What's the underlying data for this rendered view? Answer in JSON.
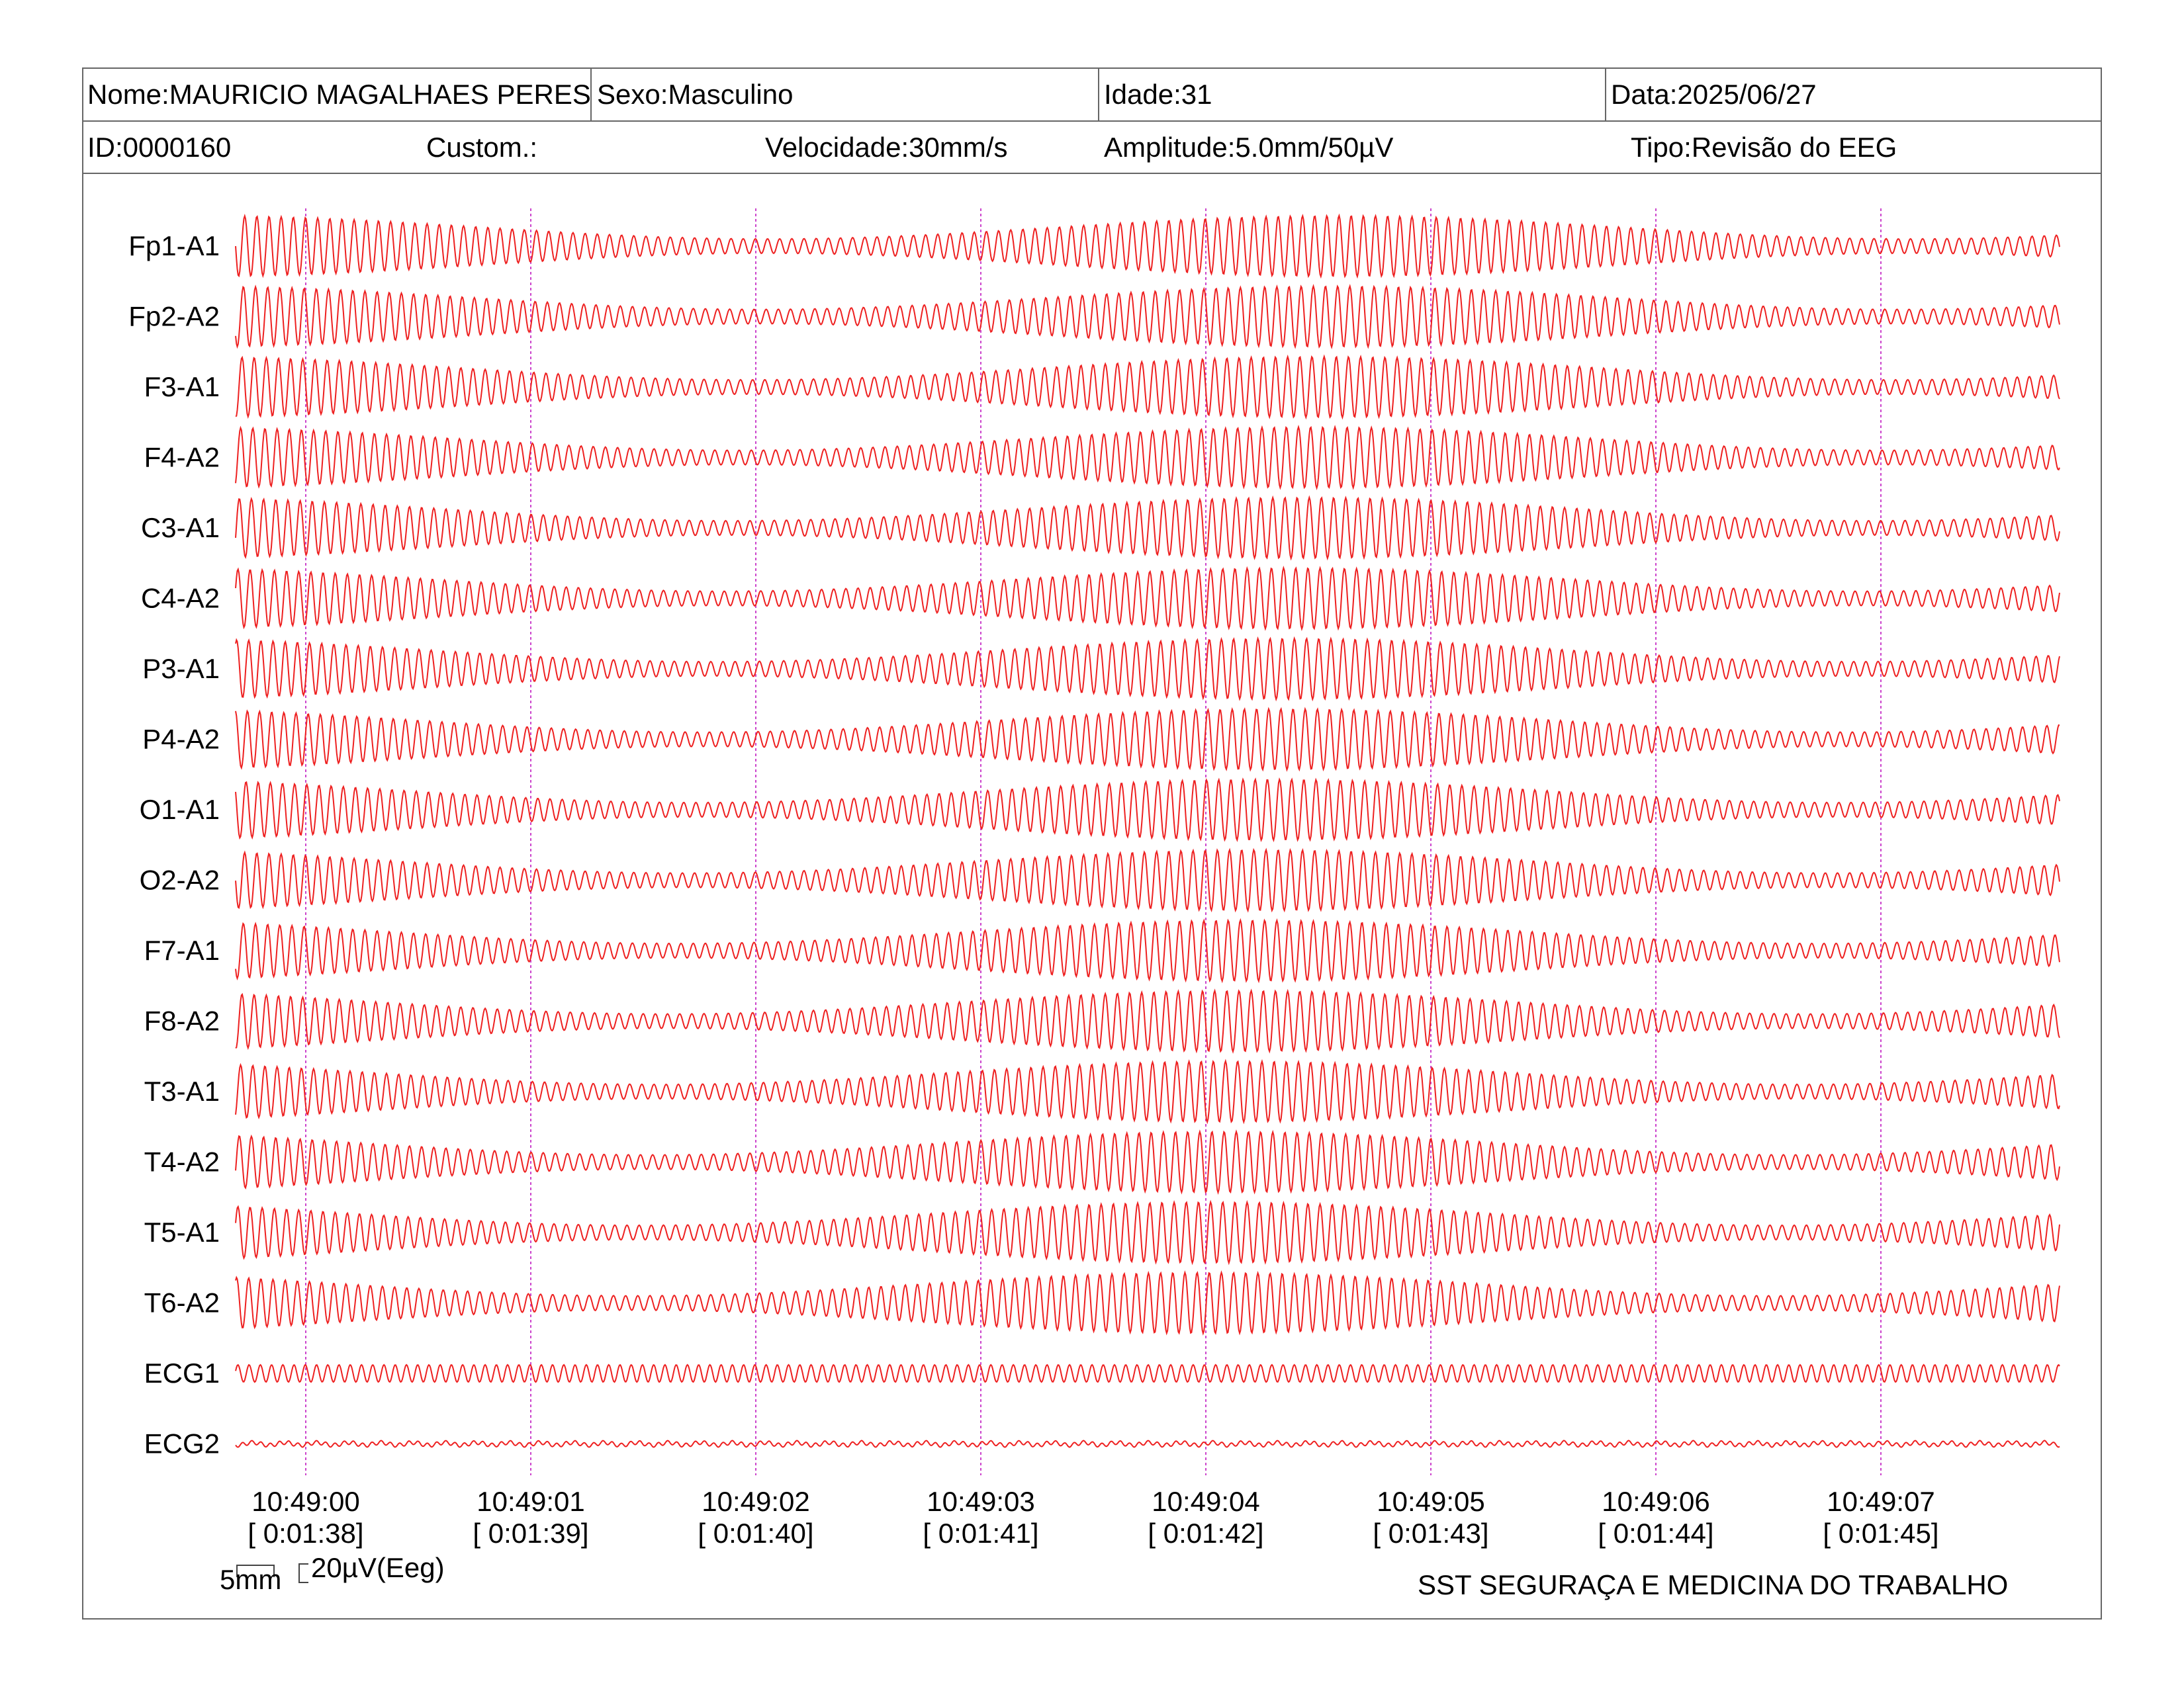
{
  "header": {
    "nome": "Nome:MAURICIO MAGALHAES PERES",
    "sexo": "Sexo:Masculino",
    "idade": "Idade:31",
    "data": "Data:2025/06/27",
    "id": "ID:0000160",
    "custom": "Custom.:",
    "velocidade": "Velocidade:30mm/s",
    "amplitude": "Amplitude:5.0mm/50µV",
    "tipo": "Tipo:Revisão do EEG"
  },
  "channels": [
    "Fp1-A1",
    "Fp2-A2",
    "F3-A1",
    "F4-A2",
    "C3-A1",
    "C4-A2",
    "P3-A1",
    "P4-A2",
    "O1-A1",
    "O2-A2",
    "F7-A1",
    "F8-A2",
    "T3-A1",
    "T4-A2",
    "T5-A1",
    "T6-A2",
    "ECG1",
    "ECG2"
  ],
  "time_marks": [
    {
      "clock": "10:49:00",
      "elapsed": "[ 0:01:38]"
    },
    {
      "clock": "10:49:01",
      "elapsed": "[ 0:01:39]"
    },
    {
      "clock": "10:49:02",
      "elapsed": "[ 0:01:40]"
    },
    {
      "clock": "10:49:03",
      "elapsed": "[ 0:01:41]"
    },
    {
      "clock": "10:49:04",
      "elapsed": "[ 0:01:42]"
    },
    {
      "clock": "10:49:05",
      "elapsed": "[ 0:01:43]"
    },
    {
      "clock": "10:49:06",
      "elapsed": "[ 0:01:44]"
    },
    {
      "clock": "10:49:07",
      "elapsed": "[ 0:01:45]"
    }
  ],
  "scale": {
    "time_label": "5mm",
    "amp_label": "20µV(Eeg)"
  },
  "footer": {
    "company": "SST SEGURAÇA E MEDICINA DO TRABALHO"
  },
  "colors": {
    "trace": "#ee2020",
    "marker": "#cc44cc",
    "border": "#666666"
  }
}
